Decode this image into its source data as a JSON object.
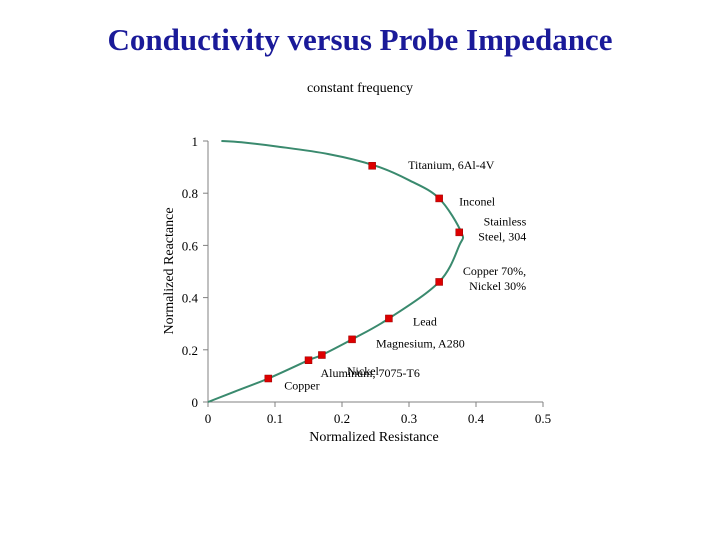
{
  "slide": {
    "title": "Conductivity versus Probe Impedance"
  },
  "chart_data": {
    "type": "scatter",
    "subtitle": "constant frequency",
    "xlabel": "Normalized Resistance",
    "ylabel": "Normalized Reactance",
    "xlim": [
      0,
      0.5
    ],
    "ylim": [
      0,
      1
    ],
    "xticks": [
      "0",
      "0.1",
      "0.2",
      "0.3",
      "0.4",
      "0.5"
    ],
    "yticks": [
      "0",
      "0.2",
      "0.4",
      "0.6",
      "0.8",
      "1"
    ],
    "xtick_values": [
      0,
      0.1,
      0.2,
      0.3,
      0.4,
      0.5
    ],
    "ytick_values": [
      0,
      0.2,
      0.4,
      0.6,
      0.8,
      1
    ],
    "grid": false,
    "colors": {
      "curve": "#3a8a6e",
      "marker": "#dd0000",
      "axis": "#808080"
    },
    "curve": {
      "x": [
        0,
        0.04,
        0.09,
        0.15,
        0.17,
        0.215,
        0.27,
        0.345,
        0.375,
        0.378,
        0.345,
        0.3,
        0.25,
        0.18,
        0.1,
        0.05,
        0.02
      ],
      "y": [
        0,
        0.04,
        0.09,
        0.16,
        0.18,
        0.24,
        0.32,
        0.46,
        0.6,
        0.65,
        0.78,
        0.85,
        0.905,
        0.95,
        0.98,
        0.995,
        1.0
      ]
    },
    "points": [
      {
        "label": "Copper",
        "x": 0.09,
        "y": 0.09
      },
      {
        "label": "Aluminum, 7075-T6",
        "x": 0.15,
        "y": 0.16
      },
      {
        "label": "Nickel",
        "x": 0.17,
        "y": 0.18
      },
      {
        "label": "Magnesium, A280",
        "x": 0.215,
        "y": 0.24
      },
      {
        "label": "Lead",
        "x": 0.27,
        "y": 0.32
      },
      {
        "label": "Copper 70%, Nickel 30%",
        "label_lines": [
          "Copper 70%,",
          "Nickel 30%"
        ],
        "x": 0.345,
        "y": 0.46
      },
      {
        "label": "Stainless Steel, 304",
        "label_lines": [
          "Stainless",
          "Steel, 304"
        ],
        "x": 0.375,
        "y": 0.65
      },
      {
        "label": "Inconel",
        "x": 0.345,
        "y": 0.78
      },
      {
        "label": "Titanium, 6Al-4V",
        "x": 0.245,
        "y": 0.905
      }
    ]
  }
}
